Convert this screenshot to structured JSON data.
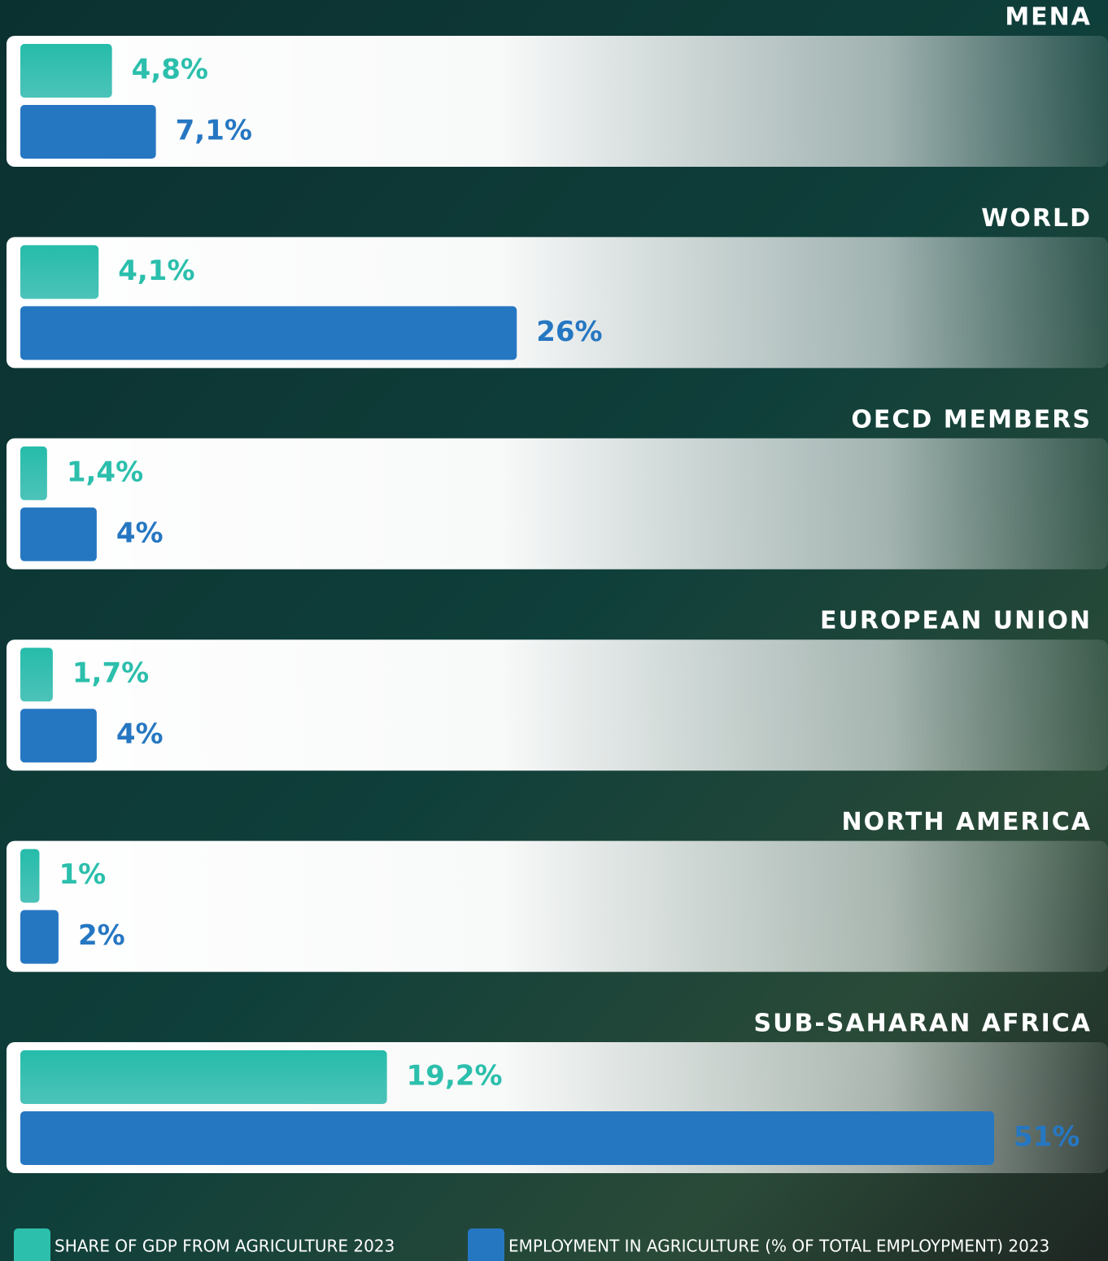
{
  "chart_data": {
    "type": "bar",
    "categories": [
      "MENA",
      "WORLD",
      "OECD MEMBERS",
      "EUROPEAN UNION",
      "NORTH AMERICA",
      "SUB-SAHARAN AFRICA"
    ],
    "series": [
      {
        "name": "SHARE OF GDP FROM AGRICULTURE 2023",
        "color": "#2bbfac",
        "values": [
          4.8,
          4.1,
          1.4,
          1.7,
          1,
          19.2
        ],
        "value_labels": [
          "4,8%",
          "4,1%",
          "1,4%",
          "1,7%",
          "1%",
          "19,2%"
        ]
      },
      {
        "name": "EMPLOYMENT IN AGRICULTURE (% OF TOTAL EMPLOYPMENT) 2023",
        "color": "#2677c2",
        "values": [
          7.1,
          26,
          4,
          4,
          2,
          51
        ],
        "value_labels": [
          "7,1%",
          "26%",
          "4%",
          "4%",
          "2%",
          "51%"
        ]
      }
    ]
  }
}
